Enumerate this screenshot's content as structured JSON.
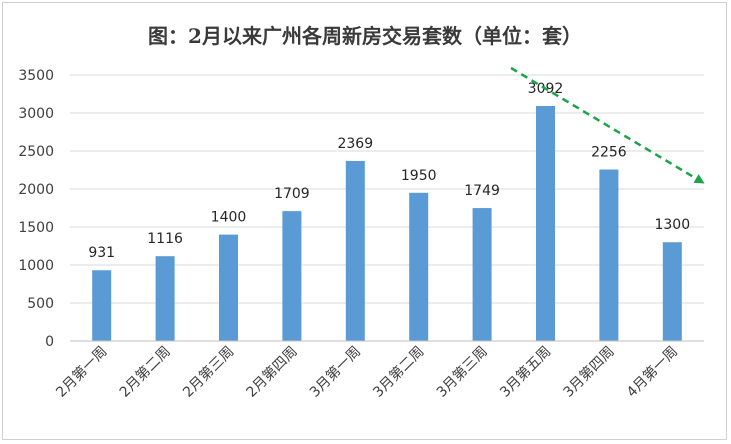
{
  "chart_data": {
    "type": "bar",
    "title": "图：2月以来广州各周新房交易套数（单位：套）",
    "categories": [
      "2月第一周",
      "2月第二周",
      "2月第三周",
      "2月第四周",
      "3月第一周",
      "3月第二周",
      "3月第三周",
      "3月第五周",
      "3月第四周",
      "4月第一周"
    ],
    "values": [
      931,
      1116,
      1400,
      1709,
      2369,
      1950,
      1749,
      3092,
      2256,
      1300
    ],
    "xlabel": "",
    "ylabel": "",
    "ylim": [
      0,
      3500
    ],
    "yticks": [
      0,
      500,
      1000,
      1500,
      2000,
      2500,
      3000,
      3500
    ],
    "grid": true,
    "legend": "none",
    "bar_color": "#5b9bd5",
    "trend_arrow_color": "#1aa54a"
  }
}
